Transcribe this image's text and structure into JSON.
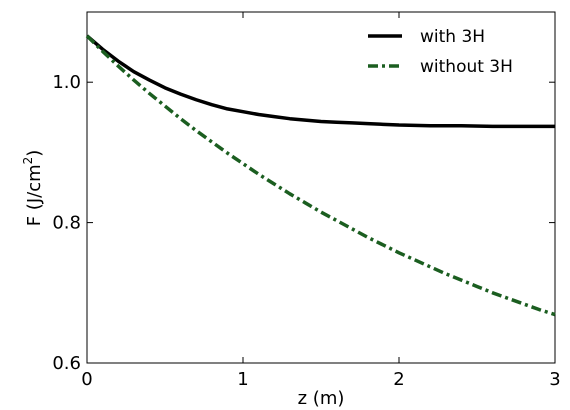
{
  "chart_data": {
    "type": "line",
    "xlabel": "z (m)",
    "ylabel": {
      "main": "F (J/cm",
      "sup": "2",
      "end": ")"
    },
    "xlim": [
      0,
      3
    ],
    "ylim": [
      0.6,
      1.1
    ],
    "x_ticks": [
      0,
      1,
      2,
      3
    ],
    "x_tick_labels": [
      "0",
      "1",
      "2",
      "3"
    ],
    "y_ticks": [
      0.6,
      0.8,
      1.0
    ],
    "y_tick_labels": [
      "0.6",
      "0.8",
      "1.0"
    ],
    "grid": false,
    "legend_position": "top-right",
    "series": [
      {
        "name": "with 3H",
        "color": "#000000",
        "style": "solid",
        "x": [
          0,
          0.1,
          0.2,
          0.3,
          0.4,
          0.5,
          0.6,
          0.7,
          0.8,
          0.9,
          1.0,
          1.1,
          1.2,
          1.3,
          1.4,
          1.5,
          1.6,
          1.7,
          1.8,
          1.9,
          2.0,
          2.2,
          2.4,
          2.6,
          2.8,
          3.0
        ],
        "y": [
          1.066,
          1.047,
          1.03,
          1.015,
          1.003,
          0.992,
          0.983,
          0.975,
          0.968,
          0.962,
          0.958,
          0.954,
          0.951,
          0.948,
          0.946,
          0.944,
          0.943,
          0.942,
          0.941,
          0.94,
          0.939,
          0.938,
          0.938,
          0.937,
          0.937,
          0.937
        ]
      },
      {
        "name": "without 3H",
        "color": "#1b5e20",
        "style": "dashdot",
        "x": [
          0,
          0.1,
          0.2,
          0.3,
          0.4,
          0.5,
          0.6,
          0.7,
          0.8,
          0.9,
          1.0,
          1.1,
          1.2,
          1.3,
          1.4,
          1.5,
          1.6,
          1.7,
          1.8,
          1.9,
          2.0,
          2.1,
          2.2,
          2.3,
          2.4,
          2.5,
          2.6,
          2.7,
          2.8,
          2.9,
          3.0
        ],
        "y": [
          1.066,
          1.044,
          1.023,
          1.003,
          0.984,
          0.966,
          0.948,
          0.931,
          0.915,
          0.899,
          0.884,
          0.869,
          0.855,
          0.841,
          0.828,
          0.815,
          0.803,
          0.791,
          0.779,
          0.768,
          0.757,
          0.747,
          0.737,
          0.727,
          0.718,
          0.709,
          0.7,
          0.692,
          0.684,
          0.676,
          0.669
        ]
      }
    ]
  }
}
